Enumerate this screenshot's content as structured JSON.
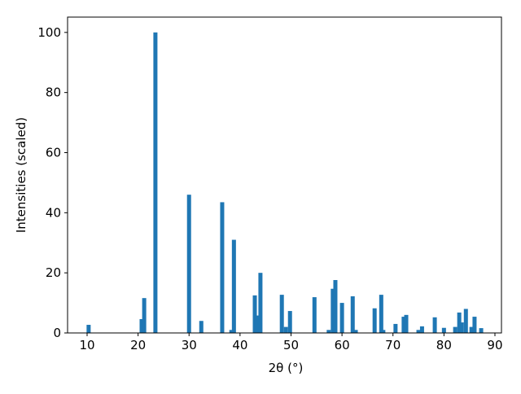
{
  "chart_data": {
    "type": "bar",
    "xlabel": "2θ (°)",
    "ylabel": "Intensities (scaled)",
    "color": "#1f77b4",
    "bar_width": 0.8,
    "x": [
      10.3,
      20.7,
      21.2,
      23.4,
      30.0,
      32.4,
      36.5,
      38.3,
      38.8,
      42.9,
      43.4,
      44.0,
      48.2,
      49.0,
      49.8,
      54.6,
      57.4,
      58.2,
      58.7,
      60.0,
      62.1,
      62.7,
      66.4,
      67.7,
      68.1,
      70.5,
      72.1,
      72.6,
      75.0,
      75.7,
      78.2,
      80.0,
      82.2,
      83.0,
      83.5,
      84.3,
      85.4,
      86.0,
      87.3
    ],
    "values": [
      2.7,
      4.6,
      11.6,
      100,
      46,
      4,
      43.5,
      1,
      31,
      12.5,
      5.8,
      20,
      12.7,
      2,
      7.3,
      11.9,
      1,
      14.7,
      17.6,
      10,
      12.2,
      1,
      8.2,
      12.7,
      1,
      3,
      5.4,
      6,
      1,
      2.2,
      5.2,
      1.7,
      2,
      6.8,
      3.5,
      8,
      2,
      5.4,
      1.6
    ],
    "xlim": [
      6.17,
      91.28
    ],
    "ylim": [
      0,
      105.1
    ],
    "xticks": [
      10,
      20,
      30,
      40,
      50,
      60,
      70,
      80,
      90
    ],
    "yticks": [
      0,
      20,
      40,
      60,
      80,
      100
    ]
  }
}
